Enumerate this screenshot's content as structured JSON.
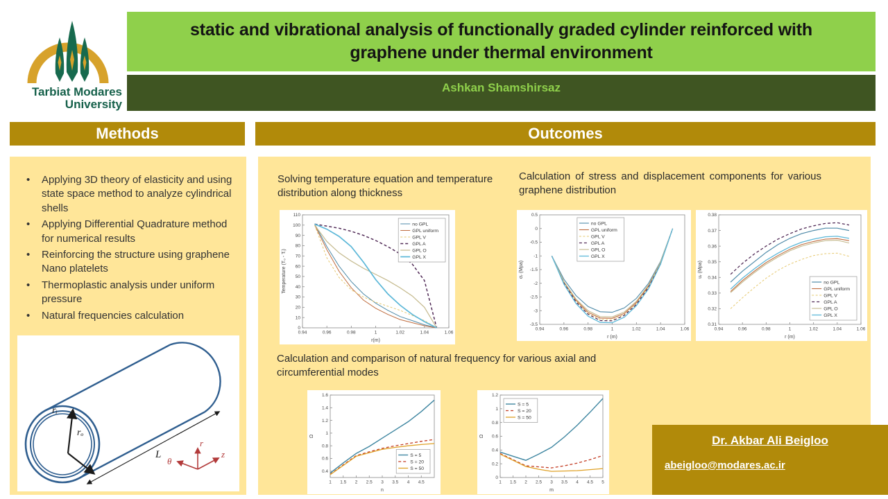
{
  "header": {
    "title": "static and vibrational analysis of functionally graded cylinder reinforced with graphene under thermal environment",
    "author": "Ashkan  Shamshirsaz",
    "logo": {
      "line1": "Tarbiat Modares",
      "line2": "University"
    }
  },
  "methods": {
    "heading": "Methods",
    "bullets": [
      "Applying 3D theory of elasticity and using state space method to analyze cylindrical shells",
      "Applying Differential Quadrature method for numerical results",
      "Reinforcing the structure using graphene Nano platelets",
      "Thermoplastic analysis under uniform pressure",
      "Natural frequencies calculation"
    ],
    "figure": {
      "ri": "rᵢ",
      "ro": "rₒ",
      "L": "L",
      "r": "r",
      "z": "z",
      "theta": "θ"
    }
  },
  "outcomes": {
    "heading": "Outcomes",
    "caption_temperature": "Solving temperature equation and temperature distribution along thickness",
    "caption_stress": "Calculation of stress and displacement components for various graphene distribution",
    "caption_frequency": "Calculation and comparison of natural frequency for various axial and circumferential modes"
  },
  "contact": {
    "name": "Dr. Akbar Ali Beigloo",
    "email": "abeigloo@modares.ac.ir"
  },
  "colors": {
    "title_green": "#8fd04b",
    "banner_dark_green": "#3f5522",
    "gold": "#b18a0a",
    "panel_yellow": "#ffe699",
    "cylinder_blue": "#2f5e8f",
    "axis_red": "#b23a3a"
  },
  "chart_data": [
    {
      "type": "line",
      "xlabel": "r(m)",
      "ylabel": "Temperature (T₀ - Tᵢ)",
      "xlim": [
        0.94,
        1.06
      ],
      "ylim": [
        0,
        110
      ],
      "xticks": [
        0.94,
        0.96,
        0.98,
        1,
        1.02,
        1.04,
        1.06
      ],
      "yticks": [
        0,
        10,
        20,
        30,
        40,
        50,
        60,
        70,
        80,
        90,
        100,
        110
      ],
      "legend_pos": "tr",
      "grid": false,
      "series": [
        {
          "name": "no GPL",
          "color": "#4e8aa8",
          "width": 1,
          "x": [
            0.95,
            0.96,
            0.97,
            0.98,
            0.99,
            1,
            1.01,
            1.02,
            1.03,
            1.04,
            1.05
          ],
          "y": [
            101,
            79,
            60,
            45,
            33,
            24,
            17,
            11,
            7,
            3,
            0
          ]
        },
        {
          "name": "GPL uniform",
          "color": "#bf6b3d",
          "width": 1,
          "x": [
            0.95,
            0.96,
            0.97,
            0.98,
            0.99,
            1,
            1.01,
            1.02,
            1.03,
            1.04,
            1.05
          ],
          "y": [
            100,
            76,
            55,
            39,
            27,
            19,
            13,
            8,
            5,
            2,
            0
          ]
        },
        {
          "name": "GPL V",
          "color": "#e6c86e",
          "dash": "3,2.5",
          "width": 1,
          "x": [
            0.95,
            0.96,
            0.97,
            0.98,
            0.99,
            1,
            1.01,
            1.02,
            1.03,
            1.04,
            1.05
          ],
          "y": [
            100,
            68,
            49,
            37,
            30,
            25,
            21,
            17,
            12,
            7,
            0
          ]
        },
        {
          "name": "GPL A",
          "color": "#502a56",
          "dash": "4,3",
          "width": 1.5,
          "x": [
            0.95,
            0.96,
            0.97,
            0.98,
            0.99,
            1,
            1.01,
            1.02,
            1.03,
            1.04,
            1.05
          ],
          "y": [
            101,
            99,
            97,
            94,
            90,
            85,
            79,
            72,
            62,
            46,
            0
          ]
        },
        {
          "name": "GPL O",
          "color": "#c4b98c",
          "width": 1.2,
          "x": [
            0.95,
            0.96,
            0.97,
            0.98,
            0.99,
            1,
            1.01,
            1.02,
            1.03,
            1.04,
            1.05
          ],
          "y": [
            100,
            84,
            73,
            65,
            58,
            52,
            46,
            39,
            31,
            20,
            0
          ]
        },
        {
          "name": "GPL X",
          "color": "#5bb7d8",
          "width": 1.7,
          "x": [
            0.95,
            0.96,
            0.97,
            0.98,
            0.99,
            1,
            1.01,
            1.02,
            1.03,
            1.04,
            1.05
          ],
          "y": [
            101,
            96,
            89,
            79,
            64,
            47,
            33,
            22,
            13,
            6,
            0
          ]
        }
      ]
    },
    {
      "type": "line",
      "xlabel": "r (m)",
      "ylabel": "σᵣ (Mpa)",
      "xlim": [
        0.94,
        1.06
      ],
      "ylim": [
        -3.5,
        0.5
      ],
      "xticks": [
        0.94,
        0.96,
        0.98,
        1,
        1.02,
        1.04,
        1.06
      ],
      "yticks": [
        0.5,
        0,
        -0.5,
        -1,
        -1.5,
        -2,
        -2.5,
        -3,
        -3.5
      ],
      "legend_pos": "tc",
      "grid": false,
      "series": [
        {
          "name": "no GPL",
          "color": "#4e8aa8",
          "width": 1.1,
          "x": [
            0.95,
            0.96,
            0.97,
            0.98,
            0.99,
            1,
            1.01,
            1.02,
            1.03,
            1.04,
            1.05
          ],
          "y": [
            -1,
            -1.85,
            -2.45,
            -2.85,
            -3.04,
            -3.06,
            -2.9,
            -2.55,
            -2,
            -1.2,
            0
          ]
        },
        {
          "name": "GPL uniform",
          "color": "#bf6b3d",
          "width": 1.1,
          "x": [
            0.95,
            0.96,
            0.97,
            0.98,
            0.99,
            1,
            1.01,
            1.02,
            1.03,
            1.04,
            1.05
          ],
          "y": [
            -1,
            -1.95,
            -2.62,
            -3.06,
            -3.27,
            -3.28,
            -3.1,
            -2.7,
            -2.1,
            -1.25,
            0
          ]
        },
        {
          "name": "GPL V",
          "color": "#e6c86e",
          "dash": "3,2.5",
          "width": 1,
          "x": [
            0.95,
            0.96,
            0.97,
            0.98,
            0.99,
            1,
            1.01,
            1.02,
            1.03,
            1.04,
            1.05
          ],
          "y": [
            -1,
            -1.97,
            -2.65,
            -3.1,
            -3.32,
            -3.33,
            -3.14,
            -2.74,
            -2.13,
            -1.27,
            0
          ]
        },
        {
          "name": "GPL A",
          "color": "#502a56",
          "dash": "4,3",
          "width": 1.3,
          "x": [
            0.95,
            0.96,
            0.97,
            0.98,
            0.99,
            1,
            1.01,
            1.02,
            1.03,
            1.04,
            1.05
          ],
          "y": [
            -1,
            -1.99,
            -2.68,
            -3.13,
            -3.36,
            -3.37,
            -3.17,
            -2.77,
            -2.15,
            -1.28,
            0
          ]
        },
        {
          "name": "GPL O",
          "color": "#c4b98c",
          "width": 1.1,
          "x": [
            0.95,
            0.96,
            0.97,
            0.98,
            0.99,
            1,
            1.01,
            1.02,
            1.03,
            1.04,
            1.05
          ],
          "y": [
            -1,
            -1.93,
            -2.58,
            -3,
            -3.22,
            -3.23,
            -3.05,
            -2.66,
            -2.06,
            -1.23,
            0
          ]
        },
        {
          "name": "GPL X",
          "color": "#5bb7d8",
          "width": 1.3,
          "x": [
            0.95,
            0.96,
            0.97,
            0.98,
            0.99,
            1,
            1.01,
            1.02,
            1.03,
            1.04,
            1.05
          ],
          "y": [
            -1,
            -2.03,
            -2.74,
            -3.2,
            -3.43,
            -3.44,
            -3.24,
            -2.82,
            -2.2,
            -1.3,
            0
          ]
        }
      ]
    },
    {
      "type": "line",
      "xlabel": "r (m)",
      "ylabel": "uᵣ (Mpa)",
      "xlim": [
        0.94,
        1.06
      ],
      "ylim": [
        0.31,
        0.38
      ],
      "xticks": [
        0.94,
        0.96,
        0.98,
        1,
        1.02,
        1.04,
        1.06
      ],
      "yticks": [
        0.31,
        0.32,
        0.33,
        0.34,
        0.35,
        0.36,
        0.37,
        0.38
      ],
      "legend_pos": "br",
      "grid": false,
      "series": [
        {
          "name": "no GPL",
          "color": "#4e8aa8",
          "width": 1.2,
          "x": [
            0.95,
            0.96,
            0.97,
            0.98,
            0.99,
            1,
            1.01,
            1.02,
            1.03,
            1.04,
            1.05
          ],
          "y": [
            0.337,
            0.344,
            0.35,
            0.356,
            0.361,
            0.365,
            0.368,
            0.37,
            0.3715,
            0.3715,
            0.37
          ]
        },
        {
          "name": "GPL uniform",
          "color": "#bf6b3d",
          "width": 1.1,
          "x": [
            0.95,
            0.96,
            0.97,
            0.98,
            0.99,
            1,
            1.01,
            1.02,
            1.03,
            1.04,
            1.05
          ],
          "y": [
            0.331,
            0.338,
            0.344,
            0.3495,
            0.354,
            0.358,
            0.361,
            0.363,
            0.3645,
            0.3648,
            0.3635
          ]
        },
        {
          "name": "GPL V",
          "color": "#e6c86e",
          "dash": "3,2.5",
          "width": 1,
          "x": [
            0.95,
            0.96,
            0.97,
            0.98,
            0.99,
            1,
            1.01,
            1.02,
            1.03,
            1.04,
            1.05
          ],
          "y": [
            0.32,
            0.327,
            0.3335,
            0.3395,
            0.3445,
            0.3485,
            0.3515,
            0.354,
            0.3552,
            0.3555,
            0.3535
          ]
        },
        {
          "name": "GPL A",
          "color": "#502a56",
          "dash": "4,3",
          "width": 1.3,
          "x": [
            0.95,
            0.96,
            0.97,
            0.98,
            0.99,
            1,
            1.01,
            1.02,
            1.03,
            1.04,
            1.05
          ],
          "y": [
            0.342,
            0.349,
            0.355,
            0.36,
            0.3645,
            0.368,
            0.371,
            0.373,
            0.3745,
            0.375,
            0.3735
          ]
        },
        {
          "name": "GPL O",
          "color": "#c4b98c",
          "width": 1.1,
          "x": [
            0.95,
            0.96,
            0.97,
            0.98,
            0.99,
            1,
            1.01,
            1.02,
            1.03,
            1.04,
            1.05
          ],
          "y": [
            0.3303,
            0.337,
            0.343,
            0.3485,
            0.353,
            0.357,
            0.36,
            0.362,
            0.3635,
            0.3638,
            0.362
          ]
        },
        {
          "name": "GPL X",
          "color": "#5bb7d8",
          "width": 1.3,
          "x": [
            0.95,
            0.96,
            0.97,
            0.98,
            0.99,
            1,
            1.01,
            1.02,
            1.03,
            1.04,
            1.05
          ],
          "y": [
            0.3325,
            0.3395,
            0.3455,
            0.351,
            0.3555,
            0.3595,
            0.3625,
            0.3645,
            0.366,
            0.3663,
            0.365
          ]
        }
      ]
    },
    {
      "type": "line",
      "xlabel": "n",
      "ylabel": "Ω",
      "xlim": [
        1,
        5
      ],
      "ylim": [
        0.3,
        1.6
      ],
      "xticks": [
        1,
        1.5,
        2,
        2.5,
        3,
        3.5,
        4,
        4.5
      ],
      "yticks": [
        0.4,
        0.6,
        0.8,
        1,
        1.2,
        1.4,
        1.6
      ],
      "legend_pos": "br",
      "grid": false,
      "series": [
        {
          "name": "S = 5",
          "color": "#3d85a0",
          "width": 1.4,
          "x": [
            1,
            1.5,
            2,
            2.5,
            3,
            3.5,
            4,
            4.5,
            5
          ],
          "y": [
            0.37,
            0.53,
            0.68,
            0.79,
            0.92,
            1.05,
            1.18,
            1.34,
            1.52
          ]
        },
        {
          "name": "S = 20",
          "color": "#c23b22",
          "dash": "4,3",
          "width": 1.3,
          "x": [
            1,
            1.5,
            2,
            2.5,
            3,
            3.5,
            4,
            4.5,
            5
          ],
          "y": [
            0.35,
            0.5,
            0.645,
            0.705,
            0.76,
            0.8,
            0.835,
            0.87,
            0.9
          ]
        },
        {
          "name": "S = 50",
          "color": "#dfa126",
          "width": 1.3,
          "x": [
            1,
            1.5,
            2,
            2.5,
            3,
            3.5,
            4,
            4.5,
            5
          ],
          "y": [
            0.345,
            0.49,
            0.635,
            0.69,
            0.745,
            0.775,
            0.8,
            0.82,
            0.835
          ]
        }
      ]
    },
    {
      "type": "line",
      "xlabel": "m",
      "ylabel": "Ω",
      "xlim": [
        1,
        5
      ],
      "ylim": [
        0,
        1.2
      ],
      "xticks": [
        1,
        1.5,
        2,
        2.5,
        3,
        3.5,
        4,
        4.5,
        5
      ],
      "yticks": [
        0,
        0.2,
        0.4,
        0.6,
        0.8,
        1,
        1.2
      ],
      "legend_pos": "tl",
      "grid": false,
      "series": [
        {
          "name": "S = 5",
          "color": "#3d85a0",
          "width": 1.4,
          "x": [
            1,
            1.5,
            2,
            2.5,
            3,
            3.5,
            4,
            4.5,
            5
          ],
          "y": [
            0.37,
            0.31,
            0.25,
            0.34,
            0.44,
            0.59,
            0.76,
            0.95,
            1.15
          ]
        },
        {
          "name": "S = 20",
          "color": "#c23b22",
          "dash": "4,3",
          "width": 1.3,
          "x": [
            1,
            1.5,
            2,
            2.5,
            3,
            3.5,
            4,
            4.5,
            5
          ],
          "y": [
            0.35,
            0.26,
            0.17,
            0.155,
            0.14,
            0.17,
            0.21,
            0.26,
            0.32
          ]
        },
        {
          "name": "S = 50",
          "color": "#dfa126",
          "width": 1.3,
          "x": [
            1,
            1.5,
            2,
            2.5,
            3,
            3.5,
            4,
            4.5,
            5
          ],
          "y": [
            0.34,
            0.25,
            0.16,
            0.12,
            0.09,
            0.095,
            0.1,
            0.115,
            0.13
          ]
        }
      ]
    }
  ]
}
